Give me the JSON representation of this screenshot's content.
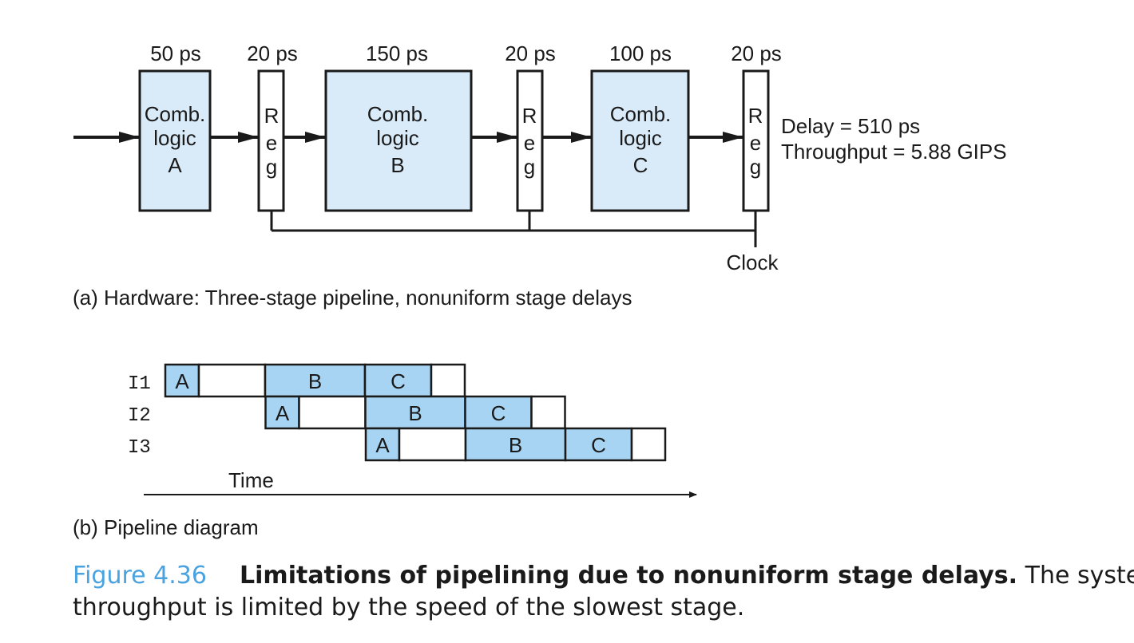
{
  "hardware": {
    "delays": [
      "50 ps",
      "20 ps",
      "150 ps",
      "20 ps",
      "100 ps",
      "20 ps"
    ],
    "comb_blocks": [
      {
        "lines": [
          "Comb.",
          "logic",
          "A"
        ]
      },
      {
        "lines": [
          "Comb.",
          "logic",
          "B"
        ]
      },
      {
        "lines": [
          "Comb.",
          "logic",
          "C"
        ]
      }
    ],
    "reg_letters": [
      "R",
      "e",
      "g"
    ],
    "delay_text": "Delay = 510 ps",
    "throughput_text": "Throughput = 5.88 GIPS",
    "clock_label": "Clock",
    "caption": "(a) Hardware: Three-stage pipeline, nonuniform stage delays"
  },
  "pipeline": {
    "instructions": [
      {
        "label": "I1",
        "cells": [
          "A",
          "",
          "B",
          "C",
          ""
        ]
      },
      {
        "label": "I2",
        "cells": [
          "A",
          "",
          "B",
          "C",
          ""
        ]
      },
      {
        "label": "I3",
        "cells": [
          "A",
          "",
          "B",
          "C",
          ""
        ]
      }
    ],
    "time_label": "Time",
    "caption": "(b) Pipeline diagram"
  },
  "figure": {
    "number": "Figure 4.36",
    "title": "Limitations of pipelining due to nonuniform stage delays.",
    "text1": " The system",
    "text2": "throughput is limited by the speed of the slowest stage."
  },
  "colors": {
    "block_fill": "#d9ebf9",
    "cell_fill": "#a6d4f2",
    "stroke": "#1a1a1a"
  }
}
